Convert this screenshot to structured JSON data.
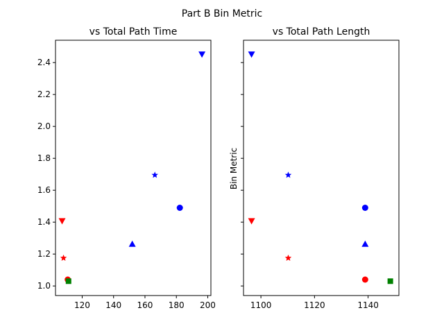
{
  "chart_data": {
    "suptitle": "Part B Bin Metric",
    "panels": [
      {
        "type": "scatter",
        "title": "vs Total Path Time",
        "xlabel": "",
        "ylabel": "",
        "xlim": [
          103,
          202
        ],
        "ylim": [
          0.94,
          2.54
        ],
        "xticks": [
          120,
          140,
          160,
          180,
          200
        ],
        "yticks": [
          1.0,
          1.2,
          1.4,
          1.6,
          1.8,
          2.0,
          2.2,
          2.4
        ],
        "show_ytick_labels": true,
        "grid": false,
        "points": [
          {
            "x": 196.3,
            "y": 2.45,
            "color": "#0000ff",
            "marker": "triangle-down"
          },
          {
            "x": 166.3,
            "y": 1.695,
            "color": "#0000ff",
            "marker": "star"
          },
          {
            "x": 182.2,
            "y": 1.49,
            "color": "#0000ff",
            "marker": "circle"
          },
          {
            "x": 151.9,
            "y": 1.265,
            "color": "#0000ff",
            "marker": "triangle-up"
          },
          {
            "x": 107.2,
            "y": 1.405,
            "color": "#ff0000",
            "marker": "triangle-down"
          },
          {
            "x": 108.1,
            "y": 1.175,
            "color": "#ff0000",
            "marker": "star"
          },
          {
            "x": 110.8,
            "y": 1.04,
            "color": "#ff0000",
            "marker": "circle"
          },
          {
            "x": 111.3,
            "y": 1.03,
            "color": "#008000",
            "marker": "square"
          }
        ]
      },
      {
        "type": "scatter",
        "title": "vs Total Path Length",
        "xlabel": "",
        "ylabel": "Bin Metric",
        "xlim": [
          1093.5,
          1151.5
        ],
        "ylim": [
          0.94,
          2.54
        ],
        "xticks": [
          1100,
          1120,
          1140
        ],
        "yticks": [
          1.0,
          1.2,
          1.4,
          1.6,
          1.8,
          2.0,
          2.2,
          2.4
        ],
        "show_ytick_labels": false,
        "grid": false,
        "points": [
          {
            "x": 1096.5,
            "y": 2.45,
            "color": "#0000ff",
            "marker": "triangle-down"
          },
          {
            "x": 1110.2,
            "y": 1.695,
            "color": "#0000ff",
            "marker": "star"
          },
          {
            "x": 1138.9,
            "y": 1.49,
            "color": "#0000ff",
            "marker": "circle"
          },
          {
            "x": 1138.9,
            "y": 1.265,
            "color": "#0000ff",
            "marker": "triangle-up"
          },
          {
            "x": 1096.5,
            "y": 1.405,
            "color": "#ff0000",
            "marker": "triangle-down"
          },
          {
            "x": 1110.2,
            "y": 1.175,
            "color": "#ff0000",
            "marker": "star"
          },
          {
            "x": 1138.9,
            "y": 1.04,
            "color": "#ff0000",
            "marker": "circle"
          },
          {
            "x": 1148.3,
            "y": 1.03,
            "color": "#008000",
            "marker": "square"
          }
        ]
      }
    ]
  }
}
